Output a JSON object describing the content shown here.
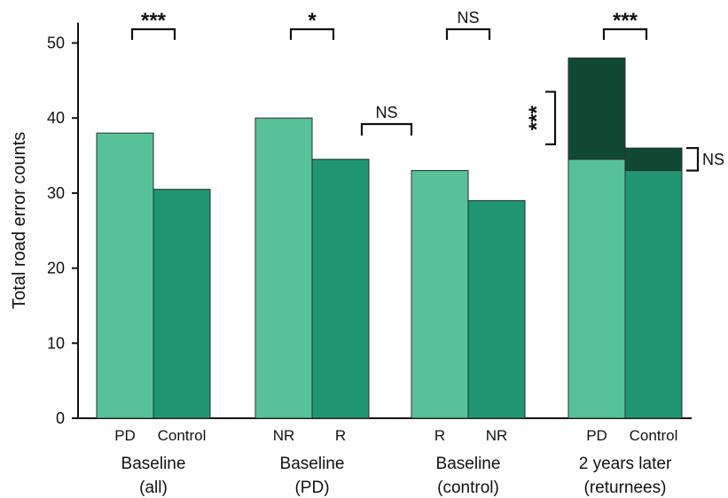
{
  "chart_data": {
    "type": "bar",
    "ylabel": "Total road error counts",
    "ylim": [
      0,
      52
    ],
    "yticks": [
      0,
      10,
      20,
      30,
      40,
      50
    ],
    "colors": {
      "light": "#57c299",
      "mid": "#1f9671",
      "dark": "#104a35",
      "edge": "#2b2b2b",
      "axis": "#111111"
    },
    "groups": [
      {
        "label_line1": "Baseline",
        "label_line2": "(all)",
        "bars": [
          {
            "label": "PD",
            "value": 38,
            "color": "light"
          },
          {
            "label": "Control",
            "value": 30.5,
            "color": "mid"
          }
        ]
      },
      {
        "label_line1": "Baseline",
        "label_line2": "(PD)",
        "bars": [
          {
            "label": "NR",
            "value": 40,
            "color": "light"
          },
          {
            "label": "R",
            "value": 34.5,
            "color": "mid"
          }
        ]
      },
      {
        "label_line1": "Baseline",
        "label_line2": "(control)",
        "bars": [
          {
            "label": "R",
            "value": 33,
            "color": "light"
          },
          {
            "label": "NR",
            "value": 29,
            "color": "mid"
          }
        ]
      },
      {
        "label_line1": "2 years later",
        "label_line2": "(returnees)",
        "bars": [
          {
            "label": "PD",
            "value": 34.5,
            "color": "light",
            "stack_value": 48,
            "stack_color": "dark"
          },
          {
            "label": "Control",
            "value": 33,
            "color": "mid",
            "stack_value": 36,
            "stack_color": "dark"
          }
        ]
      }
    ],
    "annotations": [
      {
        "text": "***",
        "kind": "top-bracket",
        "from": [
          0,
          0
        ],
        "to": [
          0,
          1
        ],
        "y": 51
      },
      {
        "text": "*",
        "kind": "top-bracket",
        "from": [
          1,
          0
        ],
        "to": [
          1,
          1
        ],
        "y": 51
      },
      {
        "text": "NS",
        "kind": "top-bracket",
        "from": [
          2,
          0
        ],
        "to": [
          2,
          1
        ],
        "y": 51
      },
      {
        "text": "***",
        "kind": "top-bracket",
        "from": [
          3,
          0
        ],
        "to": [
          3,
          1
        ],
        "y": 51
      },
      {
        "text": "NS",
        "kind": "between-groups",
        "from": [
          1,
          1
        ],
        "to": [
          2,
          0
        ],
        "y": 39
      },
      {
        "text": "***",
        "kind": "side-bracket-left",
        "bar": [
          3,
          0
        ],
        "y1": 36.5,
        "y2": 43.5
      },
      {
        "text": "NS",
        "kind": "side-bracket-right",
        "bar": [
          3,
          1
        ],
        "y1": 33,
        "y2": 36
      }
    ]
  }
}
